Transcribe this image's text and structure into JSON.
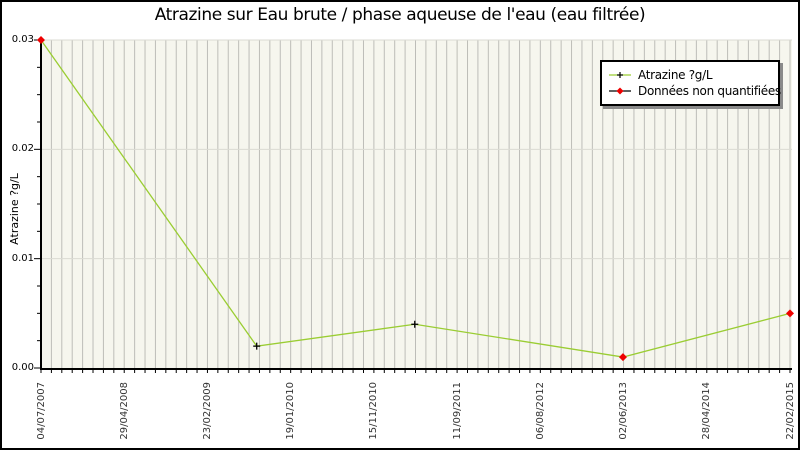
{
  "chart_data": {
    "type": "line",
    "title": "Atrazine sur Eau brute / phase aqueuse de l'eau (eau filtrée)",
    "ylabel": "Atrazine ?g/L",
    "xlabel": "",
    "ylim": [
      0,
      0.03
    ],
    "y_ticks": [
      {
        "value": 0.0,
        "label": "0.00"
      },
      {
        "value": 0.01,
        "label": "0.01"
      },
      {
        "value": 0.02,
        "label": "0.02"
      },
      {
        "value": 0.03,
        "label": "0.03"
      }
    ],
    "y_minor_step": 0.0025,
    "x_tick_labels": [
      "04/07/2007",
      "29/04/2008",
      "23/02/2009",
      "19/01/2010",
      "15/11/2010",
      "11/09/2011",
      "06/08/2012",
      "02/06/2013",
      "28/04/2014",
      "22/02/2015"
    ],
    "x_minor_ticks_per_major": 8,
    "grid": {
      "vertical_minor": true,
      "horizontal_major": true
    },
    "legend": {
      "position": "top-right",
      "entries": [
        {
          "label": "Atrazine ?g/L",
          "marker": "black-plus-on-green-line"
        },
        {
          "label": "Données non quantifiées",
          "marker": "red-diamond-on-black-line"
        }
      ]
    },
    "series": [
      {
        "name": "Atrazine ?g/L",
        "points": [
          {
            "x_frac": 0.0,
            "x_label": "04/07/2007",
            "value": 0.03,
            "quantified": false
          },
          {
            "x_frac": 0.288,
            "x_label": "",
            "value": 0.002,
            "quantified": true
          },
          {
            "x_frac": 0.499,
            "x_label": "",
            "value": 0.004,
            "quantified": true
          },
          {
            "x_frac": 0.777,
            "x_label": "02/06/2013",
            "value": 0.001,
            "quantified": false
          },
          {
            "x_frac": 1.0,
            "x_label": "22/02/2015",
            "value": 0.005,
            "quantified": false
          }
        ]
      }
    ],
    "colors": {
      "line": "#9ACD32",
      "unquantified_marker": "#EE0000",
      "quantified_marker": "#000000",
      "plot_bg": "#F6F6EE",
      "vgrid": "#BDBDB8",
      "hgrid": "#DBDBD3",
      "axis": "#000000",
      "legend_line2": "#000000"
    }
  }
}
